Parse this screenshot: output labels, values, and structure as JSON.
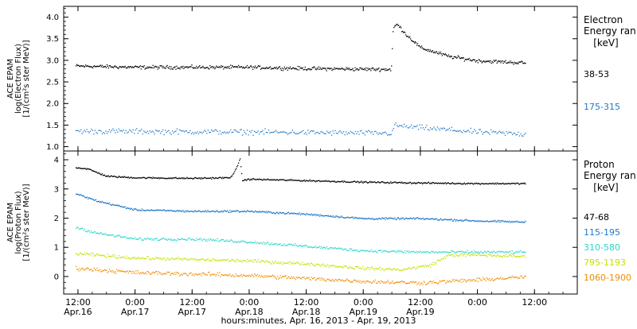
{
  "chart_data": [
    {
      "type": "scatter",
      "ylabel": [
        "ACE EPAM",
        "log(Electron Flux)",
        "[1/(cm²s ster MeV)]"
      ],
      "ylim": [
        0.9,
        4.25
      ],
      "yticks": [
        1.0,
        1.5,
        2.0,
        2.5,
        3.0,
        3.5,
        4.0
      ],
      "ytick_labels": [
        "1.0",
        "1.5",
        "2.0",
        "2.5",
        "3.0",
        "3.5",
        "4.0"
      ],
      "legend_title": [
        "Electron",
        "Energy ran",
        "[keV]"
      ],
      "series": [
        {
          "name": "38-53",
          "color": "#000000",
          "profile": [
            [
              11.5,
              2.88
            ],
            [
              24,
              2.85
            ],
            [
              48,
              2.85
            ],
            [
              60,
              2.82
            ],
            [
              77.8,
              2.8
            ],
            [
              78.2,
              3.75
            ],
            [
              79,
              3.85
            ],
            [
              81,
              3.6
            ],
            [
              84,
              3.3
            ],
            [
              90,
              3.1
            ],
            [
              96,
              3.0
            ],
            [
              106,
              2.95
            ]
          ],
          "noise": 0.06,
          "density": 6
        },
        {
          "name": "175-315",
          "color": "#1f78c8",
          "profile": [
            [
              11.5,
              1.37
            ],
            [
              48,
              1.35
            ],
            [
              77.8,
              1.32
            ],
            [
              78.5,
              1.5
            ],
            [
              84,
              1.45
            ],
            [
              96,
              1.35
            ],
            [
              106,
              1.3
            ]
          ],
          "noise": 0.09,
          "density": 4
        }
      ]
    },
    {
      "type": "scatter",
      "ylabel": [
        "ACE EPAM",
        "log(Proton Flux)",
        "[1/(cm²s ster MeV)]"
      ],
      "ylim": [
        -0.6,
        4.3
      ],
      "yticks": [
        0,
        1,
        2,
        3,
        4
      ],
      "ytick_labels": [
        "0",
        "1",
        "2",
        "3",
        "4"
      ],
      "legend_title": [
        "Proton",
        "Energy ran",
        "[keV]"
      ],
      "series": [
        {
          "name": "47-68",
          "color": "#000000",
          "profile": [
            [
              11.5,
              3.75
            ],
            [
              14,
              3.7
            ],
            [
              18,
              3.45
            ],
            [
              24,
              3.4
            ],
            [
              36,
              3.38
            ],
            [
              44,
              3.4
            ],
            [
              45.5,
              3.8
            ],
            [
              46,
              4.05
            ],
            [
              46.5,
              3.3
            ],
            [
              48,
              3.35
            ],
            [
              60,
              3.3
            ],
            [
              72,
              3.25
            ],
            [
              84,
              3.22
            ],
            [
              96,
              3.2
            ],
            [
              106,
              3.2
            ]
          ],
          "noise": 0.04,
          "density": 6
        },
        {
          "name": "115-195",
          "color": "#1f78c8",
          "profile": [
            [
              11.5,
              2.85
            ],
            [
              16,
              2.6
            ],
            [
              24,
              2.3
            ],
            [
              36,
              2.25
            ],
            [
              48,
              2.25
            ],
            [
              60,
              2.15
            ],
            [
              72,
              2.0
            ],
            [
              84,
              2.0
            ],
            [
              96,
              1.92
            ],
            [
              106,
              1.88
            ]
          ],
          "noise": 0.05,
          "density": 6
        },
        {
          "name": "310-580",
          "color": "#2ad6c8",
          "profile": [
            [
              11.5,
              1.7
            ],
            [
              16,
              1.5
            ],
            [
              24,
              1.3
            ],
            [
              36,
              1.3
            ],
            [
              48,
              1.2
            ],
            [
              60,
              1.05
            ],
            [
              72,
              0.9
            ],
            [
              84,
              0.85
            ],
            [
              96,
              0.85
            ],
            [
              106,
              0.85
            ]
          ],
          "noise": 0.07,
          "density": 5
        },
        {
          "name": "795-1193",
          "color": "#c8e000",
          "profile": [
            [
              11.5,
              0.8
            ],
            [
              24,
              0.65
            ],
            [
              48,
              0.55
            ],
            [
              60,
              0.45
            ],
            [
              72,
              0.3
            ],
            [
              80,
              0.25
            ],
            [
              86,
              0.4
            ],
            [
              90,
              0.75
            ],
            [
              96,
              0.75
            ],
            [
              106,
              0.7
            ]
          ],
          "noise": 0.08,
          "density": 5
        },
        {
          "name": "1060-1900",
          "color": "#f08c00",
          "profile": [
            [
              11.5,
              0.3
            ],
            [
              24,
              0.15
            ],
            [
              48,
              0.05
            ],
            [
              60,
              -0.05
            ],
            [
              72,
              -0.15
            ],
            [
              84,
              -0.2
            ],
            [
              96,
              -0.1
            ],
            [
              106,
              0.0
            ]
          ],
          "noise": 0.1,
          "density": 5
        }
      ]
    }
  ],
  "xaxis": {
    "title": "hours:minutes, Apr. 16, 2013 - Apr. 19, 2013",
    "xlim": [
      9,
      117
    ],
    "ticks": [
      {
        "x": 12,
        "time": "12:00",
        "date": "Apr.16"
      },
      {
        "x": 24,
        "time": "0:00",
        "date": "Apr.17"
      },
      {
        "x": 36,
        "time": "12:00",
        "date": "Apr.17"
      },
      {
        "x": 48,
        "time": "0:00",
        "date": "Apr.18"
      },
      {
        "x": 60,
        "time": "12:00",
        "date": "Apr.18"
      },
      {
        "x": 72,
        "time": "0:00",
        "date": "Apr.19"
      },
      {
        "x": 84,
        "time": "12:00",
        "date": "Apr.19"
      },
      {
        "x": 96,
        "time": "0:00",
        "date": ""
      },
      {
        "x": 108,
        "time": "12:00",
        "date": ""
      }
    ]
  }
}
